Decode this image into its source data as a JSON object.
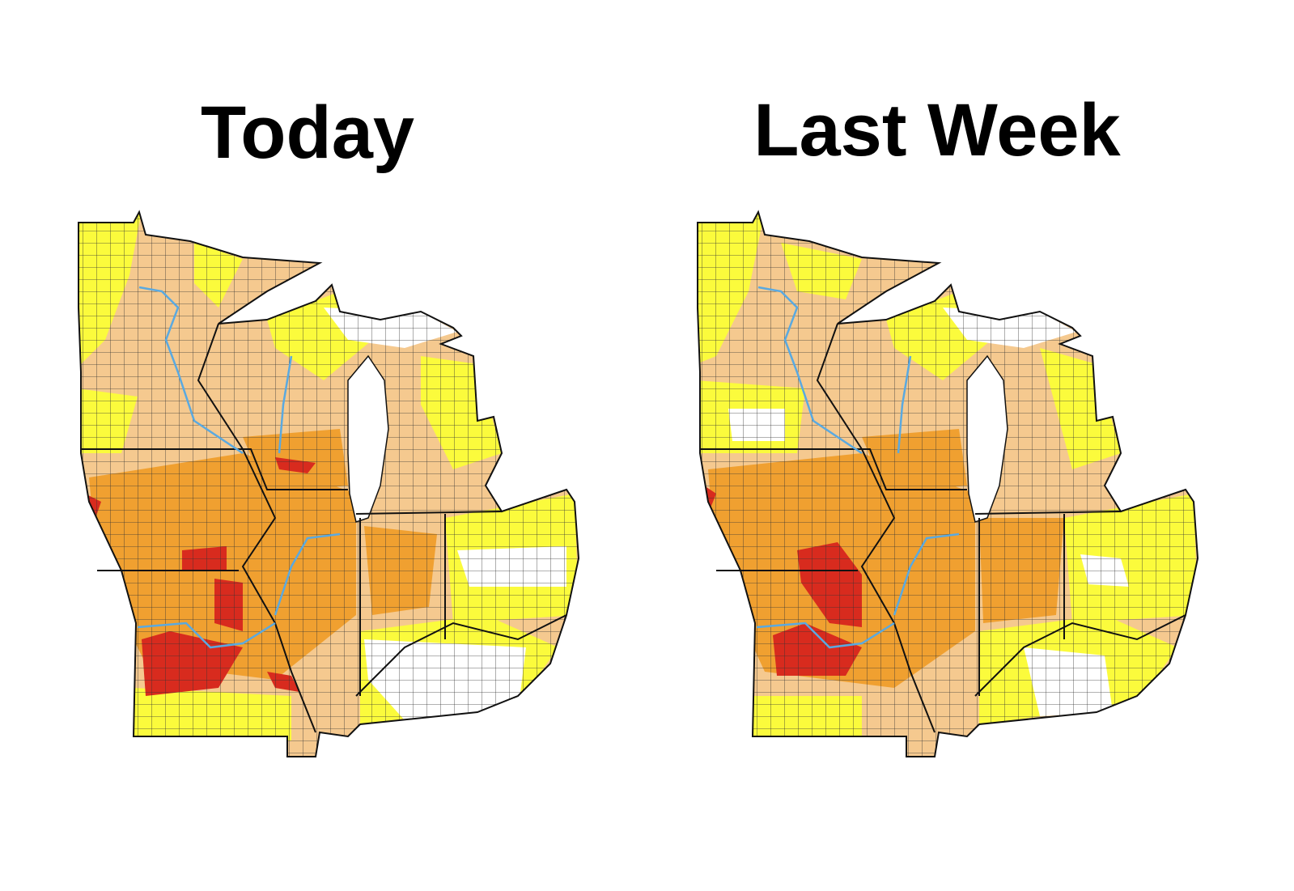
{
  "maps": [
    {
      "title": "Today"
    },
    {
      "title": "Last Week"
    }
  ]
}
